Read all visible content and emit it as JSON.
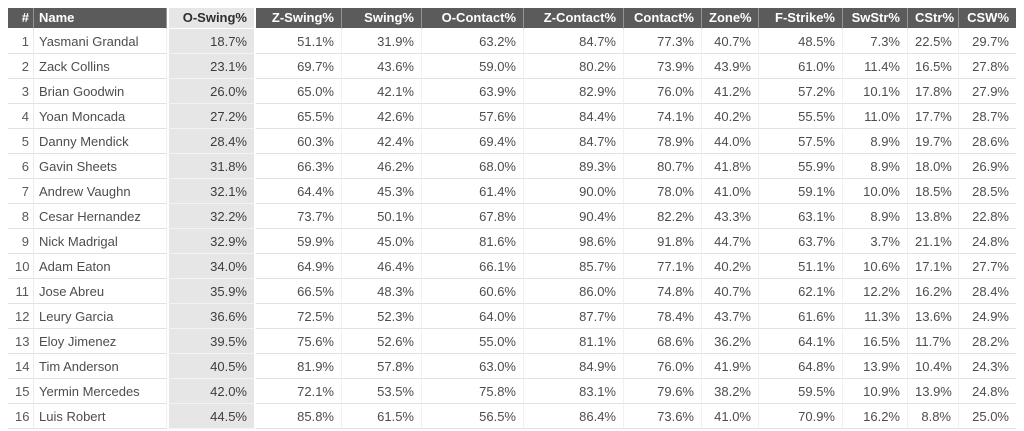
{
  "colors": {
    "header_background": "#5b5b5b",
    "header_text": "#ffffff",
    "highlight_column_background": "#e6e6e6",
    "row_background": "#ffffff",
    "body_text": "#4d4d4d",
    "row_separator": "#e2e2e2"
  },
  "chart_data": {
    "type": "table",
    "title": "",
    "highlighted_column": "O-Swing%",
    "highlighted_column_index": 2,
    "sort": {
      "column": "O-Swing%",
      "direction": "ascending"
    },
    "columns": [
      {
        "label": "#",
        "name": "rank",
        "align": "right"
      },
      {
        "label": "Name",
        "name": "name",
        "align": "left"
      },
      {
        "label": "O-Swing%",
        "name": "o-swing",
        "align": "right"
      },
      {
        "label": "Z-Swing%",
        "name": "z-swing",
        "align": "right"
      },
      {
        "label": "Swing%",
        "name": "swing",
        "align": "right"
      },
      {
        "label": "O-Contact%",
        "name": "o-contact",
        "align": "right"
      },
      {
        "label": "Z-Contact%",
        "name": "z-contact",
        "align": "right"
      },
      {
        "label": "Contact%",
        "name": "contact",
        "align": "right"
      },
      {
        "label": "Zone%",
        "name": "zone",
        "align": "right"
      },
      {
        "label": "F-Strike%",
        "name": "f-strike",
        "align": "right"
      },
      {
        "label": "SwStr%",
        "name": "swstr",
        "align": "right"
      },
      {
        "label": "CStr%",
        "name": "cstr",
        "align": "right"
      },
      {
        "label": "CSW%",
        "name": "csw",
        "align": "right"
      }
    ],
    "rows": [
      [
        "1",
        "Yasmani Grandal",
        "18.7%",
        "51.1%",
        "31.9%",
        "63.2%",
        "84.7%",
        "77.3%",
        "40.7%",
        "48.5%",
        "7.3%",
        "22.5%",
        "29.7%"
      ],
      [
        "2",
        "Zack Collins",
        "23.1%",
        "69.7%",
        "43.6%",
        "59.0%",
        "80.2%",
        "73.9%",
        "43.9%",
        "61.0%",
        "11.4%",
        "16.5%",
        "27.8%"
      ],
      [
        "3",
        "Brian Goodwin",
        "26.0%",
        "65.0%",
        "42.1%",
        "63.9%",
        "82.9%",
        "76.0%",
        "41.2%",
        "57.2%",
        "10.1%",
        "17.8%",
        "27.9%"
      ],
      [
        "4",
        "Yoan Moncada",
        "27.2%",
        "65.5%",
        "42.6%",
        "57.6%",
        "84.4%",
        "74.1%",
        "40.2%",
        "55.5%",
        "11.0%",
        "17.7%",
        "28.7%"
      ],
      [
        "5",
        "Danny Mendick",
        "28.4%",
        "60.3%",
        "42.4%",
        "69.4%",
        "84.7%",
        "78.9%",
        "44.0%",
        "57.5%",
        "8.9%",
        "19.7%",
        "28.6%"
      ],
      [
        "6",
        "Gavin Sheets",
        "31.8%",
        "66.3%",
        "46.2%",
        "68.0%",
        "89.3%",
        "80.7%",
        "41.8%",
        "55.9%",
        "8.9%",
        "18.0%",
        "26.9%"
      ],
      [
        "7",
        "Andrew Vaughn",
        "32.1%",
        "64.4%",
        "45.3%",
        "61.4%",
        "90.0%",
        "78.0%",
        "41.0%",
        "59.1%",
        "10.0%",
        "18.5%",
        "28.5%"
      ],
      [
        "8",
        "Cesar Hernandez",
        "32.2%",
        "73.7%",
        "50.1%",
        "67.8%",
        "90.4%",
        "82.2%",
        "43.3%",
        "63.1%",
        "8.9%",
        "13.8%",
        "22.8%"
      ],
      [
        "9",
        "Nick Madrigal",
        "32.9%",
        "59.9%",
        "45.0%",
        "81.6%",
        "98.6%",
        "91.8%",
        "44.7%",
        "63.7%",
        "3.7%",
        "21.1%",
        "24.8%"
      ],
      [
        "10",
        "Adam Eaton",
        "34.0%",
        "64.9%",
        "46.4%",
        "66.1%",
        "85.7%",
        "77.1%",
        "40.2%",
        "51.1%",
        "10.6%",
        "17.1%",
        "27.7%"
      ],
      [
        "11",
        "Jose Abreu",
        "35.9%",
        "66.5%",
        "48.3%",
        "60.6%",
        "86.0%",
        "74.8%",
        "40.7%",
        "62.1%",
        "12.2%",
        "16.2%",
        "28.4%"
      ],
      [
        "12",
        "Leury Garcia",
        "36.6%",
        "72.5%",
        "52.3%",
        "64.0%",
        "87.7%",
        "78.4%",
        "43.7%",
        "61.6%",
        "11.3%",
        "13.6%",
        "24.9%"
      ],
      [
        "13",
        "Eloy Jimenez",
        "39.5%",
        "75.6%",
        "52.6%",
        "55.0%",
        "81.1%",
        "68.6%",
        "36.2%",
        "64.1%",
        "16.5%",
        "11.7%",
        "28.2%"
      ],
      [
        "14",
        "Tim Anderson",
        "40.5%",
        "81.9%",
        "57.8%",
        "63.0%",
        "84.9%",
        "76.0%",
        "41.9%",
        "64.8%",
        "13.9%",
        "10.4%",
        "24.3%"
      ],
      [
        "15",
        "Yermin Mercedes",
        "42.0%",
        "72.1%",
        "53.5%",
        "75.8%",
        "83.1%",
        "79.6%",
        "38.2%",
        "59.5%",
        "10.9%",
        "13.9%",
        "24.8%"
      ],
      [
        "16",
        "Luis Robert",
        "44.5%",
        "85.8%",
        "61.5%",
        "56.5%",
        "86.4%",
        "73.6%",
        "41.0%",
        "70.9%",
        "16.2%",
        "8.8%",
        "25.0%"
      ]
    ]
  }
}
